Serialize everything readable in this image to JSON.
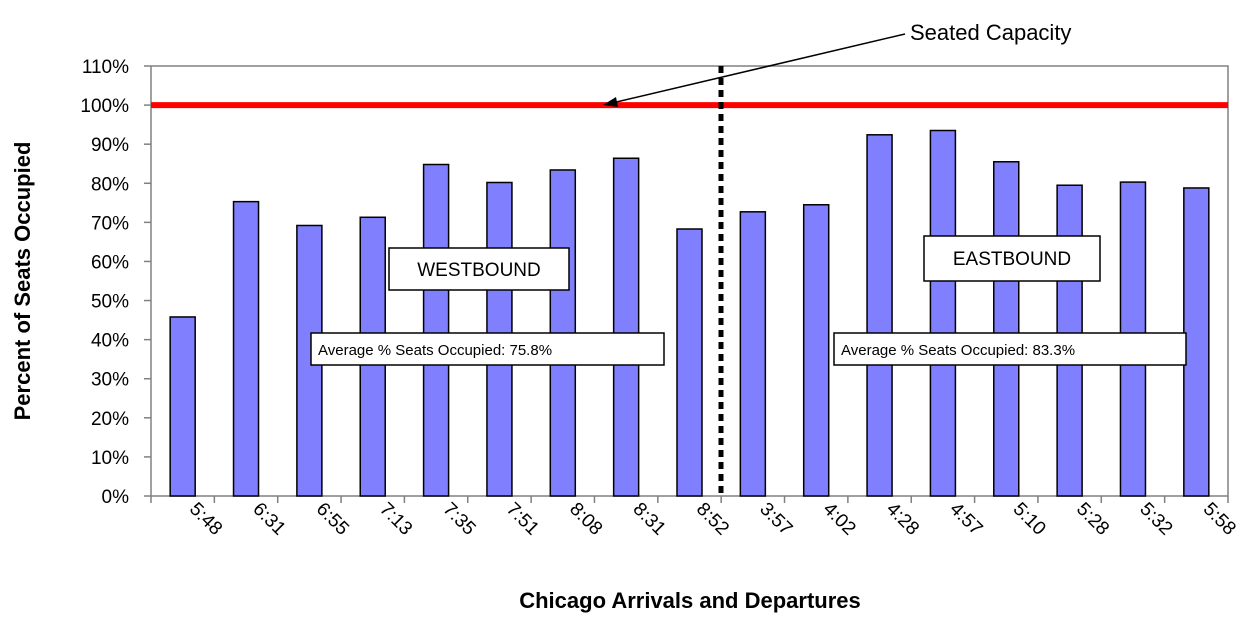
{
  "chart_data": {
    "type": "bar",
    "xlabel": "Chicago Arrivals and Departures",
    "ylabel": "Percent of Seats Occupied",
    "ylim": [
      0,
      110
    ],
    "yticks": [
      "0%",
      "10%",
      "20%",
      "30%",
      "40%",
      "50%",
      "60%",
      "70%",
      "80%",
      "90%",
      "100%",
      "110%"
    ],
    "categories": [
      "5:48",
      "6:31",
      "6:55",
      "7:13",
      "7:35",
      "7:51",
      "8:08",
      "8:31",
      "8:52",
      "3:57",
      "4:02",
      "4:28",
      "4:57",
      "5:10",
      "5:28",
      "5:32",
      "5:58"
    ],
    "values": [
      45.8,
      75.3,
      69.2,
      71.3,
      84.8,
      80.2,
      83.4,
      86.4,
      68.3,
      72.7,
      74.5,
      92.4,
      93.5,
      85.5,
      79.5,
      80.3,
      78.8
    ],
    "bar_color": "#8080ff",
    "grid": false,
    "reference_line": {
      "value": 100,
      "color": "#ff0000"
    },
    "annotations": {
      "capacity_label": "Seated Capacity",
      "westbound_label": "WESTBOUND",
      "eastbound_label": "EASTBOUND",
      "westbound_avg": "Average % Seats Occupied: 75.8%",
      "eastbound_avg": "Average % Seats Occupied: 83.3%"
    }
  }
}
